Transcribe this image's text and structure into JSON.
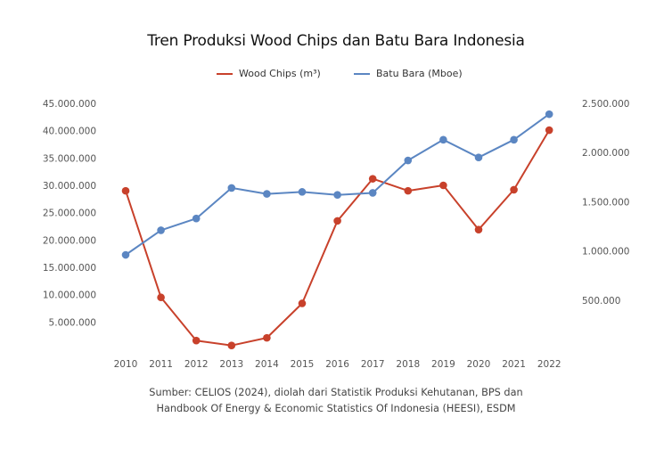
{
  "chart_data": {
    "type": "line",
    "title": "Tren Produksi Wood Chips dan Batu Bara Indonesia",
    "categories": [
      "2010",
      "2011",
      "2012",
      "2013",
      "2014",
      "2015",
      "2016",
      "2017",
      "2018",
      "2019",
      "2020",
      "2021",
      "2022"
    ],
    "series": [
      {
        "name": "Wood Chips (m³)",
        "axis": "left",
        "color": "#c8412b",
        "values": [
          29000000,
          9500000,
          1600000,
          700000,
          2100000,
          8400000,
          23500000,
          31200000,
          29000000,
          30000000,
          21900000,
          29200000,
          40100000
        ]
      },
      {
        "name": "Batu Bara (Mboe)",
        "axis": "right",
        "color": "#5b86c2",
        "values": [
          960000,
          1210000,
          1330000,
          1640000,
          1580000,
          1600000,
          1570000,
          1590000,
          1920000,
          2130000,
          1950000,
          2130000,
          2390000
        ]
      }
    ],
    "y_left": {
      "range": [
        0,
        45000000
      ],
      "ticks": [
        5000000,
        10000000,
        15000000,
        20000000,
        25000000,
        30000000,
        35000000,
        40000000,
        45000000
      ],
      "tick_labels": [
        "5.000.000",
        "10.000.000",
        "15.000.000",
        "20.000.000",
        "25.000.000",
        "30.000.000",
        "35.000.000",
        "40.000.000",
        "45.000.000"
      ]
    },
    "y_right": {
      "range": [
        0,
        2500000
      ],
      "ticks": [
        500000,
        1000000,
        1500000,
        2000000,
        2500000
      ],
      "tick_labels": [
        "500.000",
        "1.000.000",
        "1.500.000",
        "2.000.000",
        "2.500.000"
      ]
    },
    "grid": false,
    "legend": "top"
  },
  "source_line1": "Sumber: CELIOS (2024), diolah dari Statistik Produksi Kehutanan, BPS dan",
  "source_line2": "Handbook Of Energy & Economic Statistics Of Indonesia (HEESI), ESDM"
}
